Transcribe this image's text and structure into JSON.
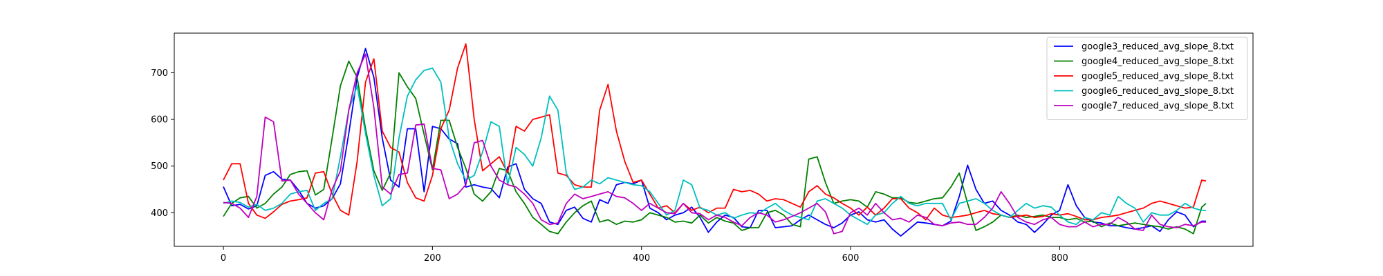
{
  "chart_data": {
    "type": "line",
    "title": "",
    "xlabel": "",
    "ylabel": "",
    "xlim": [
      -47,
      985
    ],
    "ylim": [
      328,
      785
    ],
    "xticks": [
      0,
      200,
      400,
      600,
      800
    ],
    "yticks": [
      400,
      500,
      600,
      700
    ],
    "grid": false,
    "legend_position": "top-right",
    "x": [
      0,
      8,
      16,
      24,
      32,
      40,
      48,
      56,
      64,
      72,
      80,
      88,
      96,
      104,
      112,
      120,
      128,
      136,
      144,
      152,
      160,
      168,
      176,
      184,
      192,
      200,
      208,
      216,
      224,
      232,
      240,
      248,
      256,
      264,
      272,
      280,
      288,
      296,
      304,
      312,
      320,
      328,
      336,
      344,
      352,
      360,
      368,
      376,
      384,
      392,
      400,
      408,
      416,
      424,
      432,
      440,
      448,
      456,
      464,
      472,
      480,
      488,
      496,
      504,
      512,
      520,
      528,
      536,
      544,
      552,
      560,
      568,
      576,
      584,
      592,
      600,
      608,
      616,
      624,
      632,
      640,
      648,
      656,
      664,
      672,
      680,
      688,
      696,
      704,
      712,
      720,
      728,
      736,
      744,
      752,
      760,
      768,
      776,
      784,
      792,
      800,
      808,
      816,
      824,
      832,
      840,
      848,
      856,
      864,
      872,
      880,
      888,
      896,
      904,
      912,
      920,
      928,
      936,
      940
    ],
    "series": [
      {
        "name": "google3_reduced_avg_slope_8.txt",
        "color": "#0000ff",
        "values": [
          456,
          415,
          418,
          408,
          415,
          480,
          488,
          472,
          470,
          448,
          420,
          410,
          415,
          430,
          462,
          570,
          690,
          752,
          690,
          560,
          470,
          455,
          580,
          580,
          445,
          585,
          580,
          558,
          548,
          455,
          460,
          455,
          452,
          432,
          498,
          505,
          450,
          430,
          420,
          380,
          375,
          405,
          412,
          388,
          380,
          428,
          420,
          460,
          465,
          462,
          470,
          410,
          400,
          385,
          395,
          400,
          412,
          390,
          358,
          380,
          395,
          390,
          370,
          368,
          405,
          405,
          368,
          370,
          372,
          385,
          395,
          385,
          375,
          368,
          378,
          395,
          402,
          385,
          380,
          385,
          365,
          350,
          365,
          380,
          378,
          375,
          372,
          382,
          435,
          502,
          450,
          420,
          425,
          405,
          395,
          380,
          375,
          358,
          375,
          395,
          405,
          460,
          415,
          390,
          380,
          378,
          372,
          372,
          368,
          365,
          368,
          372,
          360,
          385,
          402,
          395,
          370,
          382,
          382
        ]
      },
      {
        "name": "google4_reduced_avg_slope_8.txt",
        "color": "#008000",
        "values": [
          392,
          420,
          432,
          435,
          410,
          420,
          440,
          455,
          482,
          488,
          490,
          438,
          450,
          560,
          672,
          725,
          690,
          580,
          490,
          448,
          485,
          700,
          670,
          645,
          568,
          492,
          598,
          598,
          540,
          495,
          440,
          425,
          445,
          495,
          490,
          445,
          420,
          390,
          375,
          360,
          355,
          380,
          400,
          415,
          425,
          380,
          385,
          375,
          382,
          380,
          385,
          400,
          395,
          390,
          380,
          382,
          378,
          395,
          378,
          390,
          382,
          378,
          362,
          368,
          368,
          400,
          405,
          395,
          375,
          370,
          515,
          520,
          465,
          420,
          425,
          428,
          425,
          412,
          445,
          440,
          432,
          432,
          422,
          420,
          425,
          430,
          432,
          455,
          485,
          420,
          362,
          370,
          380,
          395,
          390,
          395,
          390,
          392,
          395,
          390,
          390,
          385,
          388,
          380,
          382,
          370,
          378,
          372,
          375,
          378,
          375,
          372,
          370,
          365,
          370,
          365,
          355,
          412,
          420
        ]
      },
      {
        "name": "google5_reduced_avg_slope_8.txt",
        "color": "#ff0000",
        "values": [
          470,
          505,
          505,
          420,
          395,
          388,
          402,
          418,
          425,
          428,
          432,
          485,
          488,
          440,
          405,
          395,
          510,
          680,
          730,
          575,
          540,
          530,
          465,
          432,
          425,
          480,
          580,
          620,
          710,
          762,
          600,
          490,
          505,
          520,
          485,
          585,
          575,
          600,
          605,
          610,
          485,
          480,
          460,
          455,
          455,
          620,
          675,
          575,
          510,
          465,
          470,
          440,
          410,
          415,
          400,
          420,
          405,
          412,
          400,
          410,
          410,
          450,
          445,
          448,
          440,
          425,
          430,
          428,
          420,
          412,
          445,
          458,
          440,
          432,
          420,
          410,
          395,
          412,
          395,
          410,
          430,
          430,
          410,
          400,
          385,
          410,
          395,
          390,
          392,
          395,
          400,
          405,
          398,
          395,
          390,
          392,
          395,
          390,
          392,
          398,
          395,
          398,
          392,
          385,
          385,
          390,
          392,
          395,
          400,
          405,
          410,
          420,
          425,
          420,
          415,
          410,
          412,
          470,
          468
        ]
      },
      {
        "name": "google6_reduced_avg_slope_8.txt",
        "color": "#00bfbf",
        "values": [
          420,
          425,
          422,
          412,
          418,
          405,
          410,
          420,
          440,
          445,
          448,
          405,
          420,
          430,
          520,
          620,
          672,
          570,
          480,
          415,
          430,
          560,
          650,
          685,
          705,
          710,
          680,
          560,
          505,
          470,
          480,
          530,
          595,
          585,
          460,
          540,
          525,
          500,
          560,
          650,
          620,
          485,
          450,
          455,
          470,
          462,
          475,
          470,
          465,
          460,
          458,
          445,
          420,
          395,
          405,
          470,
          460,
          410,
          405,
          395,
          400,
          388,
          395,
          400,
          398,
          410,
          420,
          405,
          395,
          390,
          385,
          425,
          430,
          420,
          410,
          395,
          385,
          375,
          395,
          400,
          420,
          435,
          420,
          415,
          420,
          420,
          420,
          385,
          420,
          425,
          430,
          420,
          405,
          395,
          390,
          405,
          420,
          410,
          415,
          412,
          395,
          380,
          375,
          390,
          385,
          400,
          395,
          435,
          420,
          410,
          380,
          400,
          395,
          395,
          405,
          420,
          410,
          405,
          405
        ]
      },
      {
        "name": "google7_reduced_avg_slope_8.txt",
        "color": "#bf00bf",
        "values": [
          422,
          420,
          410,
          390,
          435,
          605,
          595,
          468,
          470,
          440,
          420,
          400,
          385,
          450,
          490,
          620,
          700,
          740,
          625,
          455,
          440,
          482,
          485,
          588,
          590,
          495,
          492,
          430,
          440,
          460,
          550,
          555,
          500,
          470,
          460,
          455,
          440,
          420,
          385,
          375,
          378,
          420,
          440,
          430,
          435,
          440,
          445,
          435,
          432,
          420,
          405,
          420,
          410,
          400,
          398,
          420,
          400,
          398,
          385,
          395,
          390,
          380,
          372,
          390,
          400,
          395,
          380,
          385,
          392,
          400,
          410,
          420,
          402,
          355,
          360,
          400,
          410,
          395,
          420,
          400,
          385,
          388,
          380,
          395,
          390,
          375,
          372,
          378,
          380,
          375,
          375,
          390,
          410,
          445,
          420,
          390,
          380,
          375,
          385,
          390,
          375,
          370,
          370,
          380,
          370,
          375,
          375,
          390,
          380,
          365,
          362,
          395,
          375,
          370,
          368,
          375,
          372,
          380,
          380
        ]
      }
    ]
  }
}
